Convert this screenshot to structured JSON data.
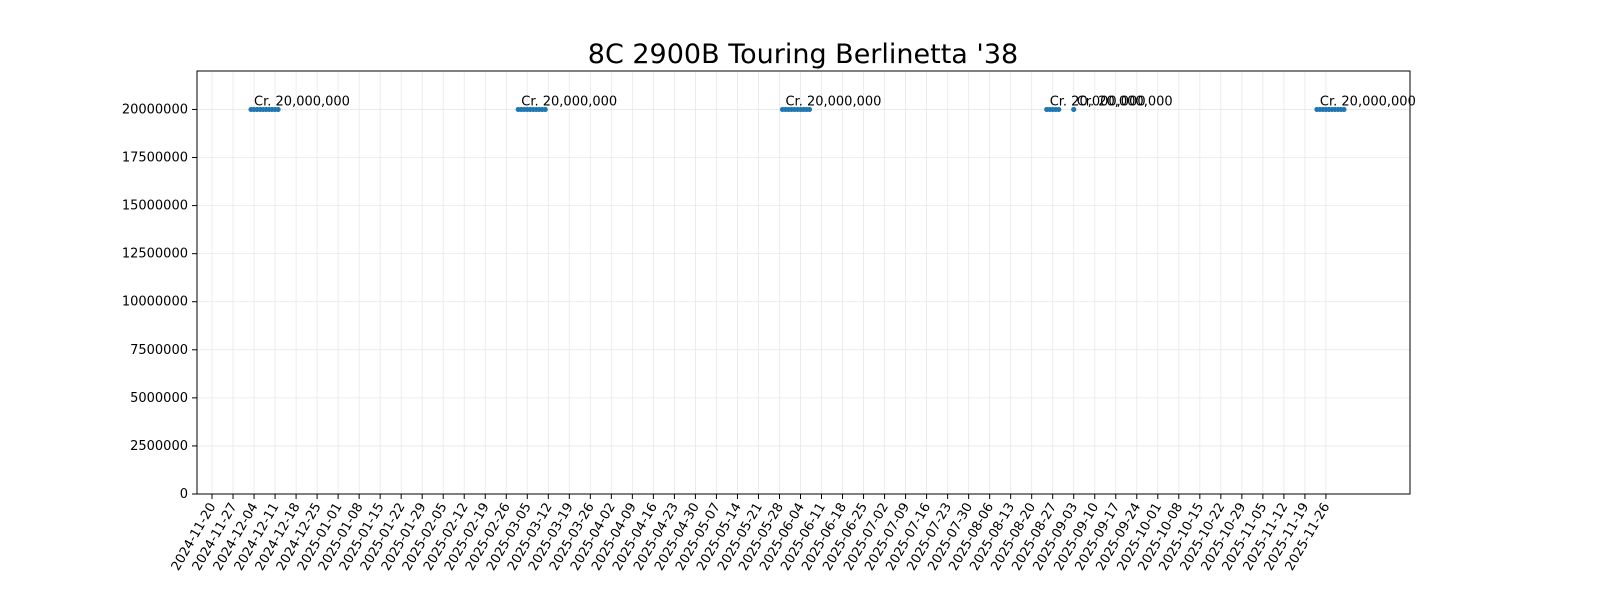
{
  "chart_data": {
    "type": "scatter",
    "title": "8C 2900B Touring Berlinetta '38",
    "xlabel": "",
    "ylabel": "",
    "grid": true,
    "legend": "none",
    "color": "#1f77b4",
    "xlim": [
      "2024-11-15",
      "2025-12-24"
    ],
    "ylim": [
      0,
      22000000
    ],
    "y_ticks": [
      0,
      2500000,
      5000000,
      7500000,
      10000000,
      12500000,
      15000000,
      17500000,
      20000000
    ],
    "x_ticks": [
      "2024-11-20",
      "2024-11-27",
      "2024-12-04",
      "2024-12-11",
      "2024-12-18",
      "2024-12-25",
      "2025-01-01",
      "2025-01-08",
      "2025-01-15",
      "2025-01-22",
      "2025-01-29",
      "2025-02-05",
      "2025-02-12",
      "2025-02-19",
      "2025-02-26",
      "2025-03-05",
      "2025-03-12",
      "2025-03-19",
      "2025-03-26",
      "2025-04-02",
      "2025-04-09",
      "2025-04-16",
      "2025-04-23",
      "2025-04-30",
      "2025-05-07",
      "2025-05-14",
      "2025-05-21",
      "2025-05-28",
      "2025-06-04",
      "2025-06-11",
      "2025-06-18",
      "2025-06-25",
      "2025-07-02",
      "2025-07-09",
      "2025-07-16",
      "2025-07-23",
      "2025-07-30",
      "2025-08-06",
      "2025-08-13",
      "2025-08-20",
      "2025-08-27",
      "2025-09-03",
      "2025-09-10",
      "2025-09-17",
      "2025-09-24",
      "2025-10-01",
      "2025-10-08",
      "2025-10-15",
      "2025-10-22",
      "2025-10-29",
      "2025-11-05",
      "2025-11-12",
      "2025-11-19",
      "2025-11-26"
    ],
    "series": [
      {
        "points": [
          {
            "x": "2024-12-03",
            "y": 20000000
          },
          {
            "x": "2024-12-04",
            "y": 20000000
          },
          {
            "x": "2024-12-05",
            "y": 20000000
          },
          {
            "x": "2024-12-06",
            "y": 20000000
          },
          {
            "x": "2024-12-07",
            "y": 20000000
          },
          {
            "x": "2024-12-08",
            "y": 20000000
          },
          {
            "x": "2024-12-09",
            "y": 20000000
          },
          {
            "x": "2024-12-10",
            "y": 20000000
          },
          {
            "x": "2024-12-11",
            "y": 20000000
          },
          {
            "x": "2024-12-12",
            "y": 20000000
          },
          {
            "x": "2025-03-02",
            "y": 20000000
          },
          {
            "x": "2025-03-03",
            "y": 20000000
          },
          {
            "x": "2025-03-04",
            "y": 20000000
          },
          {
            "x": "2025-03-05",
            "y": 20000000
          },
          {
            "x": "2025-03-06",
            "y": 20000000
          },
          {
            "x": "2025-03-07",
            "y": 20000000
          },
          {
            "x": "2025-03-08",
            "y": 20000000
          },
          {
            "x": "2025-03-09",
            "y": 20000000
          },
          {
            "x": "2025-03-10",
            "y": 20000000
          },
          {
            "x": "2025-03-11",
            "y": 20000000
          },
          {
            "x": "2025-05-29",
            "y": 20000000
          },
          {
            "x": "2025-05-30",
            "y": 20000000
          },
          {
            "x": "2025-05-31",
            "y": 20000000
          },
          {
            "x": "2025-06-01",
            "y": 20000000
          },
          {
            "x": "2025-06-02",
            "y": 20000000
          },
          {
            "x": "2025-06-03",
            "y": 20000000
          },
          {
            "x": "2025-06-04",
            "y": 20000000
          },
          {
            "x": "2025-06-05",
            "y": 20000000
          },
          {
            "x": "2025-06-06",
            "y": 20000000
          },
          {
            "x": "2025-06-07",
            "y": 20000000
          },
          {
            "x": "2025-08-25",
            "y": 20000000
          },
          {
            "x": "2025-08-26",
            "y": 20000000
          },
          {
            "x": "2025-08-27",
            "y": 20000000
          },
          {
            "x": "2025-08-28",
            "y": 20000000
          },
          {
            "x": "2025-08-29",
            "y": 20000000
          },
          {
            "x": "2025-09-03",
            "y": 20000000
          },
          {
            "x": "2025-11-23",
            "y": 20000000
          },
          {
            "x": "2025-11-24",
            "y": 20000000
          },
          {
            "x": "2025-11-25",
            "y": 20000000
          },
          {
            "x": "2025-11-26",
            "y": 20000000
          },
          {
            "x": "2025-11-27",
            "y": 20000000
          },
          {
            "x": "2025-11-28",
            "y": 20000000
          },
          {
            "x": "2025-11-29",
            "y": 20000000
          },
          {
            "x": "2025-11-30",
            "y": 20000000
          },
          {
            "x": "2025-12-01",
            "y": 20000000
          },
          {
            "x": "2025-12-02",
            "y": 20000000
          }
        ]
      }
    ],
    "annotations": [
      {
        "x": "2024-12-03",
        "y": 20000000,
        "text": "Cr. 20,000,000"
      },
      {
        "x": "2025-03-02",
        "y": 20000000,
        "text": "Cr. 20,000,000"
      },
      {
        "x": "2025-05-29",
        "y": 20000000,
        "text": "Cr. 20,000,000"
      },
      {
        "x": "2025-08-25",
        "y": 20000000,
        "text": "Cr. 20,000,000"
      },
      {
        "x": "2025-09-03",
        "y": 20000000,
        "text": "Cr. 20,000,000"
      },
      {
        "x": "2025-11-23",
        "y": 20000000,
        "text": "Cr. 20,000,000"
      }
    ]
  }
}
